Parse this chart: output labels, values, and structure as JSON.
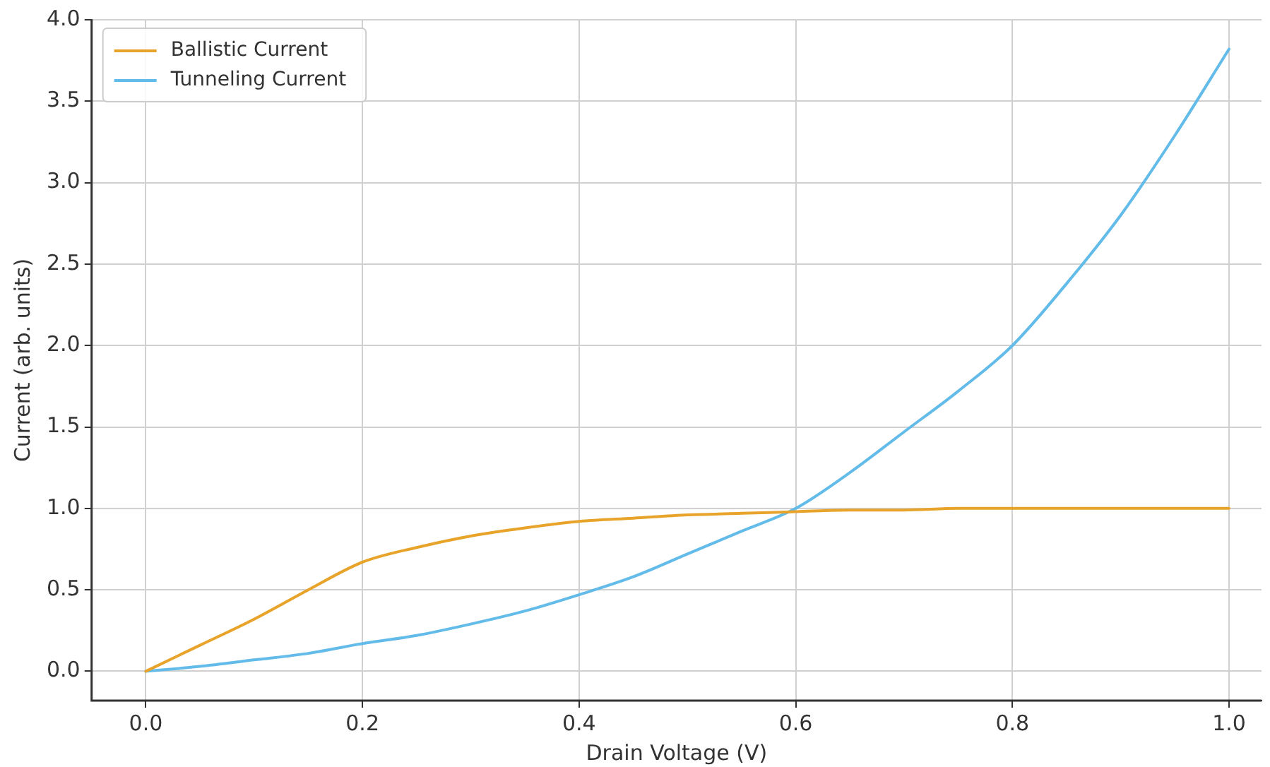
{
  "chart_data": {
    "type": "line",
    "xlabel": "Drain Voltage (V)",
    "ylabel": "Current (arb. units)",
    "x": [
      0,
      0.05,
      0.1,
      0.15,
      0.2,
      0.25,
      0.3,
      0.35,
      0.4,
      0.45,
      0.5,
      0.55,
      0.6,
      0.65,
      0.7,
      0.75,
      0.8,
      0.85,
      0.9,
      0.95,
      1.0
    ],
    "series": [
      {
        "name": "Ballistic Current",
        "color": "#e8a32a",
        "values": [
          0,
          0.16,
          0.32,
          0.5,
          0.67,
          0.76,
          0.83,
          0.88,
          0.92,
          0.94,
          0.96,
          0.97,
          0.98,
          0.99,
          0.99,
          1.0,
          1.0,
          1.0,
          1.0,
          1.0,
          1.0
        ]
      },
      {
        "name": "Tunneling Current",
        "color": "#62bbe8",
        "values": [
          0,
          0.03,
          0.07,
          0.11,
          0.17,
          0.22,
          0.29,
          0.37,
          0.47,
          0.58,
          0.72,
          0.86,
          1.0,
          1.22,
          1.47,
          1.72,
          2.0,
          2.38,
          2.8,
          3.29,
          3.82
        ]
      }
    ],
    "xlim": [
      -0.05,
      1.03
    ],
    "ylim": [
      -0.18,
      4.0
    ],
    "xticks": [
      {
        "value": 0,
        "label": "0.0"
      },
      {
        "value": 0.2,
        "label": "0.2"
      },
      {
        "value": 0.4,
        "label": "0.4"
      },
      {
        "value": 0.6,
        "label": "0.6"
      },
      {
        "value": 0.8,
        "label": "0.8"
      },
      {
        "value": 1.0,
        "label": "1.0"
      }
    ],
    "yticks": [
      {
        "value": 0,
        "label": "0.0"
      },
      {
        "value": 0.5,
        "label": "0.5"
      },
      {
        "value": 1.0,
        "label": "1.0"
      },
      {
        "value": 1.5,
        "label": "1.5"
      },
      {
        "value": 2.0,
        "label": "2.0"
      },
      {
        "value": 2.5,
        "label": "2.5"
      },
      {
        "value": 3.0,
        "label": "3.0"
      },
      {
        "value": 3.5,
        "label": "3.5"
      },
      {
        "value": 4.0,
        "label": "4.0"
      }
    ],
    "grid": true,
    "legend": "top left",
    "marker": "none",
    "line_style": "solid"
  }
}
